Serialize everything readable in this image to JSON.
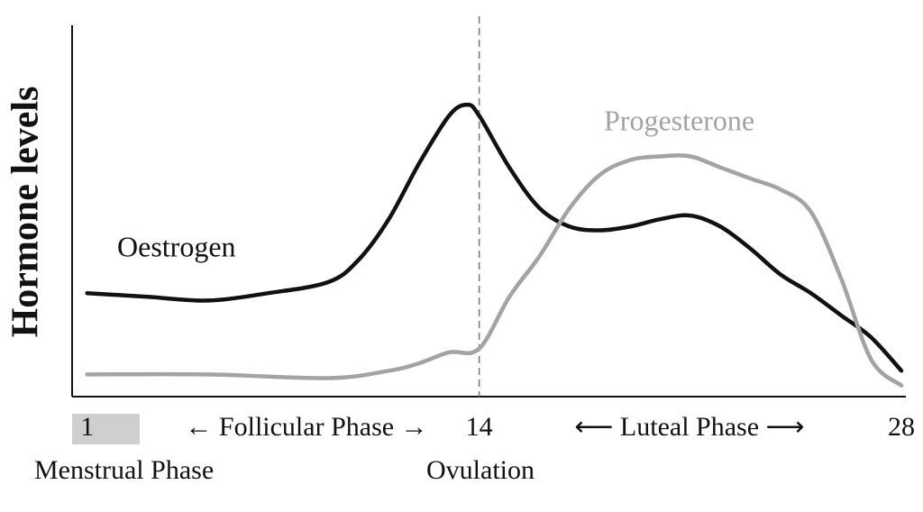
{
  "chart_data": {
    "type": "line",
    "y_label": "Hormone levels",
    "xlim": [
      0.5,
      28
    ],
    "ylim": [
      0,
      100
    ],
    "xticks": [
      1,
      14,
      28
    ],
    "ovulation_day": 14,
    "annotations": {
      "menstrual": "Menstrual Phase",
      "ovulation": "Ovulation",
      "follicular": "← Follicular Phase →",
      "luteal": "⟵  Luteal Phase  ⟶"
    },
    "series": [
      {
        "name": "Oestrogen",
        "color": "#111111",
        "x": [
          1,
          3,
          5,
          7,
          9,
          10,
          11,
          12,
          13,
          13.6,
          14,
          15,
          16,
          17,
          18,
          19,
          20,
          21,
          22,
          23,
          24,
          25,
          26,
          27,
          28
        ],
        "values": [
          28,
          27,
          26,
          28,
          31,
          37,
          48,
          63,
          76,
          79,
          76,
          62,
          51,
          46,
          45,
          46,
          48,
          49,
          46,
          40,
          33,
          28,
          22,
          16,
          7
        ]
      },
      {
        "name": "Progesterone",
        "color": "#a3a3a3",
        "x": [
          1,
          5,
          9,
          11,
          12,
          13,
          14,
          15,
          16,
          17,
          18,
          19,
          20,
          21,
          22,
          23,
          24,
          25,
          26,
          27,
          28
        ],
        "values": [
          6,
          6,
          5,
          7,
          9,
          12,
          13,
          27,
          38,
          51,
          60,
          64,
          65,
          65,
          62,
          59,
          56,
          50,
          32,
          10,
          3
        ]
      }
    ]
  }
}
